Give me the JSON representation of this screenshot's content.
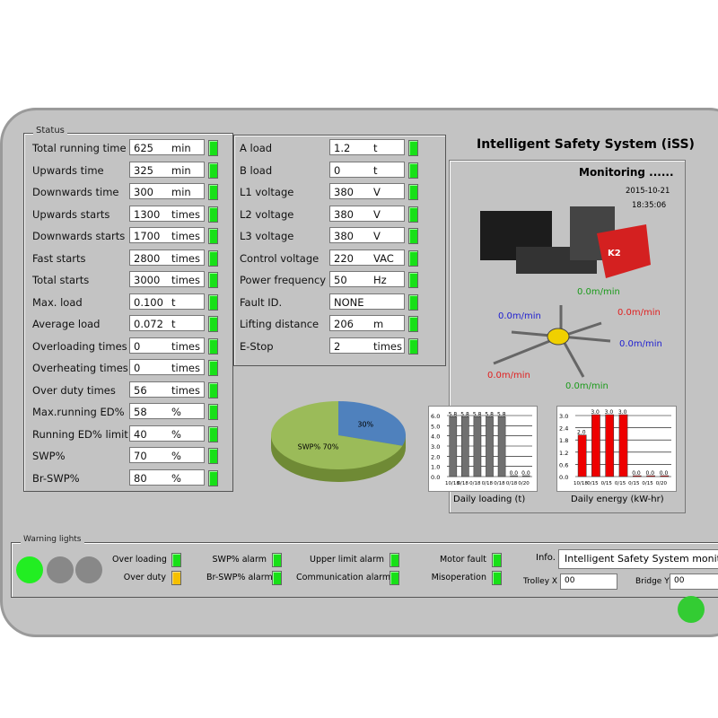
{
  "status": {
    "title": "Status",
    "rows": [
      {
        "label": "Total running time",
        "value": "625",
        "unit": "min"
      },
      {
        "label": "Upwards time",
        "value": "325",
        "unit": "min"
      },
      {
        "label": "Downwards time",
        "value": "300",
        "unit": "min"
      },
      {
        "label": "Upwards starts",
        "value": "1300",
        "unit": "times"
      },
      {
        "label": "Downwards starts",
        "value": "1700",
        "unit": "times"
      },
      {
        "label": "Fast starts",
        "value": "2800",
        "unit": "times"
      },
      {
        "label": "Total starts",
        "value": "3000",
        "unit": "times"
      },
      {
        "label": "Max. load",
        "value": "0.100",
        "unit": "t"
      },
      {
        "label": "Average load",
        "value": "0.072",
        "unit": "t"
      },
      {
        "label": "Overloading times",
        "value": "0",
        "unit": "times"
      },
      {
        "label": "Overheating times",
        "value": "0",
        "unit": "times"
      },
      {
        "label": "Over duty times",
        "value": "56",
        "unit": "times"
      },
      {
        "label": "Max.running ED%",
        "value": "58",
        "unit": "%"
      },
      {
        "label": "Running ED% limit",
        "value": "40",
        "unit": "%"
      },
      {
        "label": "SWP%",
        "value": "70",
        "unit": "%"
      },
      {
        "label": "Br-SWP%",
        "value": "80",
        "unit": "%"
      }
    ]
  },
  "electrical": {
    "rows": [
      {
        "label": "A load",
        "value": "1.2",
        "unit": "t"
      },
      {
        "label": "B load",
        "value": "0",
        "unit": "t"
      },
      {
        "label": "L1 voltage",
        "value": "380",
        "unit": "V"
      },
      {
        "label": "L2 voltage",
        "value": "380",
        "unit": "V"
      },
      {
        "label": "L3 voltage",
        "value": "380",
        "unit": "V"
      },
      {
        "label": "Control voltage",
        "value": "220",
        "unit": "VAC"
      },
      {
        "label": "Power frequency",
        "value": "50",
        "unit": "Hz"
      },
      {
        "label": "Fault ID.",
        "value": "NONE",
        "unit": ""
      },
      {
        "label": "Lifting distance",
        "value": "206",
        "unit": "m"
      },
      {
        "label": "E-Stop",
        "value": "2",
        "unit": "times"
      }
    ]
  },
  "iss": {
    "title": "Intelligent Safety System (iSS)",
    "monitoring": "Monitoring ......",
    "date": "2015-10-21",
    "time": "18:35:06",
    "speeds": {
      "up": "0.0m/min",
      "left": "0.0m/min",
      "right_red": "0.0m/min",
      "right_blue": "0.0m/min",
      "down_left": "0.0m/min",
      "down": "0.0m/min"
    }
  },
  "chart_data": [
    {
      "type": "pie",
      "slices": [
        {
          "label": "30%",
          "value": 30,
          "color": "#4f81bd"
        },
        {
          "label": "SWP% 70%",
          "value": 70,
          "color": "#9bbb59"
        }
      ]
    },
    {
      "type": "bar",
      "title": "Daily loading (t)",
      "categories": [
        "10/18",
        "0/18",
        "0/18",
        "0/18",
        "0/18",
        "0/18",
        "0/20"
      ],
      "values": [
        5.8,
        5.8,
        5.8,
        5.8,
        5.8,
        0.0,
        0.0
      ],
      "ylim": [
        0,
        6
      ],
      "yticks": [
        "0.0",
        "1.0",
        "2.0",
        "3.0",
        "4.0",
        "5.0",
        "6.0"
      ],
      "color": "#707070"
    },
    {
      "type": "bar",
      "title": "Daily energy (kW-hr)",
      "categories": [
        "10/18",
        "0/15",
        "0/15",
        "0/15",
        "0/15",
        "0/15",
        "0/20"
      ],
      "values": [
        2.0,
        3.0,
        3.0,
        3.0,
        0.0,
        0.0,
        0.0
      ],
      "ylim": [
        0,
        3
      ],
      "yticks": [
        "0.0",
        "0.6",
        "1.2",
        "1.8",
        "2.4",
        "3.0"
      ],
      "color": "#ee0000"
    }
  ],
  "warning": {
    "title": "Warning lights",
    "lights": [
      {
        "label": "Over loading",
        "state": "green"
      },
      {
        "label": "Over duty",
        "state": "yellow"
      },
      {
        "label": "SWP% alarm",
        "state": "green"
      },
      {
        "label": "Br-SWP% alarm",
        "state": "green"
      },
      {
        "label": "Upper limit alarm",
        "state": "green"
      },
      {
        "label": "Communication alarm",
        "state": "green"
      },
      {
        "label": "Motor fault",
        "state": "green"
      },
      {
        "label": "Misoperation",
        "state": "green"
      }
    ],
    "info_label": "Info.",
    "info_value": "Intelligent Safety System monitoring",
    "trolley_label": "Trolley X",
    "trolley_value": "00",
    "bridge_label": "Bridge Y",
    "bridge_value": "00"
  }
}
